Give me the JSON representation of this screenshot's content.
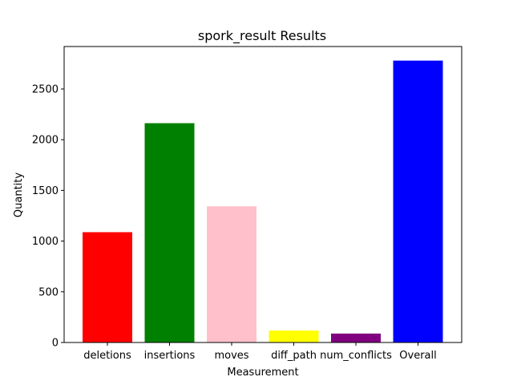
{
  "chart_data": {
    "type": "bar",
    "title": "spork_result Results",
    "xlabel": "Measurement",
    "ylabel": "Quantity",
    "categories": [
      "deletions",
      "insertions",
      "moves",
      "diff_path",
      "num_conflicts",
      "Overall"
    ],
    "values": [
      1088,
      2163,
      1343,
      118,
      88,
      2780
    ],
    "colors": [
      "#ff0000",
      "#008000",
      "#ffc0cb",
      "#ffff00",
      "#800080",
      "#0000ff"
    ],
    "ylim": [
      0,
      2919
    ],
    "yticks": [
      0,
      500,
      1000,
      1500,
      2000,
      2500
    ],
    "grid": false
  }
}
